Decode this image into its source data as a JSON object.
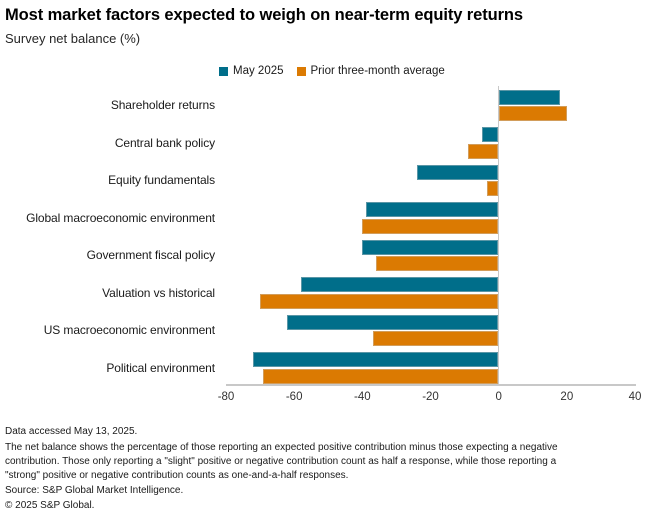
{
  "header": {
    "title": "Most market factors expected to weigh on near-term equity returns",
    "subtitle": "Survey net balance (%)"
  },
  "chart_data": {
    "type": "bar",
    "orientation": "horizontal",
    "title": "Most market factors expected to weigh on near-term equity returns",
    "subtitle": "Survey net balance (%)",
    "categories": [
      "Shareholder returns",
      "Central bank policy",
      "Equity fundamentals",
      "Global macroeconomic environment",
      "Government fiscal policy",
      "Valuation vs historical",
      "US macroeconomic environment",
      "Political environment"
    ],
    "series": [
      {
        "name": "May 2025",
        "color": "#006E8A",
        "values": [
          18,
          -5,
          -24,
          -39,
          -40,
          -58,
          -62,
          -72
        ]
      },
      {
        "name": "Prior three-month average",
        "color": "#DB7A02",
        "values": [
          20,
          -9,
          -3.5,
          -40,
          -36,
          -70,
          -37,
          -69
        ]
      }
    ],
    "xlim": [
      -80,
      40
    ],
    "xticks": [
      -80,
      -60,
      -40,
      -20,
      0,
      20,
      40
    ],
    "grid": false,
    "legend_position": "top-center",
    "axis_color": "#C8C8C8"
  },
  "footer": {
    "data_accessed": "Data accessed May 13, 2025.",
    "note_lines": [
      "The net balance shows the percentage of those reporting an expected positive contribution minus those expecting a negative",
      "contribution. Those only reporting a \"slight\" positive or negative contribution count as half a response, while those reporting a",
      "\"strong\" positive or negative contribution counts as one-and-a-half responses."
    ],
    "source": "Source: S&P Global Market Intelligence.",
    "copyright": "© 2025 S&P Global."
  }
}
